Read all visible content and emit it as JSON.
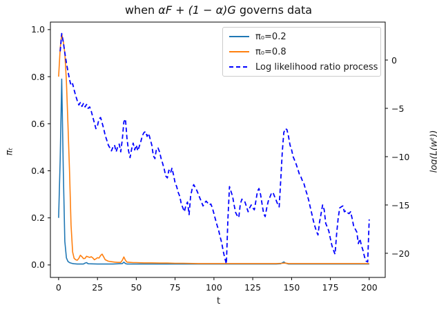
{
  "title": {
    "parts": [
      "when ",
      "αF + (1 − α)G",
      " governs data"
    ]
  },
  "xlabel": "t",
  "ylabel_left": "πₜ",
  "ylabel_right": "log(L(wᵗ))",
  "legend": {
    "items": [
      {
        "label": "π₀=0.2",
        "color": "#1f77b4",
        "dash": false
      },
      {
        "label": "π₀=0.8",
        "color": "#ff7f0e",
        "dash": false
      },
      {
        "label": "Log likelihood ratio process",
        "color": "#0000ff",
        "dash": true
      }
    ]
  },
  "chart_data": {
    "type": "line",
    "title": "when αF + (1 − α)G governs data",
    "xlabel": "t",
    "ylabel_left": "πₜ",
    "ylabel_right": "log(L(wᵗ))",
    "grid": false,
    "legend_position": "upper right",
    "xlim": [
      -5.3,
      210.3
    ],
    "yleft_lim": [
      -0.053,
      1.032
    ],
    "yright_lim": [
      -22.5,
      3.93
    ],
    "x_ticks": [
      0,
      25,
      50,
      75,
      100,
      125,
      150,
      175,
      200
    ],
    "yleft_ticks": [
      [
        0.0,
        "0.0"
      ],
      [
        0.2,
        "0.2"
      ],
      [
        0.4,
        "0.4"
      ],
      [
        0.6,
        "0.6"
      ],
      [
        0.8,
        "0.8"
      ],
      [
        1.0,
        "1.0"
      ]
    ],
    "yright_ticks": [
      [
        0,
        "0"
      ],
      [
        -5,
        "−5"
      ],
      [
        -10,
        "−10"
      ],
      [
        -15,
        "−15"
      ],
      [
        -20,
        "−20"
      ]
    ],
    "series": [
      {
        "name": "π₀=0.2",
        "axis": "left",
        "color": "#1f77b4",
        "style": "solid",
        "width": 1.6,
        "points": [
          [
            0,
            0.2
          ],
          [
            1,
            0.45
          ],
          [
            2,
            0.79
          ],
          [
            3,
            0.4
          ],
          [
            4,
            0.1
          ],
          [
            5,
            0.03
          ],
          [
            6,
            0.015
          ],
          [
            7,
            0.01
          ],
          [
            8,
            0.008
          ],
          [
            9,
            0.006
          ],
          [
            10,
            0.005
          ],
          [
            12,
            0.004
          ],
          [
            16,
            0.004
          ],
          [
            17,
            0.008
          ],
          [
            18,
            0.01
          ],
          [
            19,
            0.005
          ],
          [
            25,
            0.004
          ],
          [
            35,
            0.004
          ],
          [
            41,
            0.006
          ],
          [
            42,
            0.012
          ],
          [
            43,
            0.006
          ],
          [
            44,
            0.004
          ],
          [
            60,
            0.004
          ],
          [
            80,
            0.004
          ],
          [
            100,
            0.004
          ],
          [
            120,
            0.004
          ],
          [
            140,
            0.004
          ],
          [
            143,
            0.005
          ],
          [
            145,
            0.013
          ],
          [
            146,
            0.008
          ],
          [
            148,
            0.004
          ],
          [
            160,
            0.004
          ],
          [
            180,
            0.004
          ],
          [
            200,
            0.004
          ]
        ]
      },
      {
        "name": "π₀=0.8",
        "axis": "left",
        "color": "#ff7f0e",
        "style": "solid",
        "width": 1.6,
        "points": [
          [
            0,
            0.8
          ],
          [
            1,
            0.92
          ],
          [
            2,
            0.98
          ],
          [
            3,
            0.95
          ],
          [
            4,
            0.9
          ],
          [
            5,
            0.78
          ],
          [
            6,
            0.6
          ],
          [
            7,
            0.4
          ],
          [
            8,
            0.17
          ],
          [
            9,
            0.055
          ],
          [
            10,
            0.028
          ],
          [
            11,
            0.022
          ],
          [
            12,
            0.02
          ],
          [
            13,
            0.028
          ],
          [
            14,
            0.041
          ],
          [
            15,
            0.035
          ],
          [
            16,
            0.027
          ],
          [
            17,
            0.028
          ],
          [
            18,
            0.037
          ],
          [
            19,
            0.034
          ],
          [
            20,
            0.032
          ],
          [
            21,
            0.035
          ],
          [
            22,
            0.03
          ],
          [
            23,
            0.022
          ],
          [
            24,
            0.026
          ],
          [
            25,
            0.031
          ],
          [
            26,
            0.029
          ],
          [
            27,
            0.04
          ],
          [
            28,
            0.046
          ],
          [
            29,
            0.034
          ],
          [
            30,
            0.022
          ],
          [
            32,
            0.016
          ],
          [
            34,
            0.014
          ],
          [
            36,
            0.012
          ],
          [
            38,
            0.011
          ],
          [
            40,
            0.011
          ],
          [
            41,
            0.02
          ],
          [
            42,
            0.034
          ],
          [
            43,
            0.02
          ],
          [
            44,
            0.012
          ],
          [
            46,
            0.011
          ],
          [
            48,
            0.01
          ],
          [
            50,
            0.01
          ],
          [
            55,
            0.009
          ],
          [
            60,
            0.009
          ],
          [
            65,
            0.008
          ],
          [
            70,
            0.008
          ],
          [
            75,
            0.007
          ],
          [
            80,
            0.007
          ],
          [
            90,
            0.006
          ],
          [
            100,
            0.006
          ],
          [
            110,
            0.006
          ],
          [
            120,
            0.006
          ],
          [
            130,
            0.006
          ],
          [
            140,
            0.006
          ],
          [
            144,
            0.007
          ],
          [
            146,
            0.008
          ],
          [
            148,
            0.006
          ],
          [
            150,
            0.006
          ],
          [
            160,
            0.006
          ],
          [
            170,
            0.006
          ],
          [
            180,
            0.006
          ],
          [
            190,
            0.006
          ],
          [
            200,
            0.006
          ]
        ]
      },
      {
        "name": "Log likelihood ratio process",
        "axis": "right",
        "color": "#0000ff",
        "style": "dashed",
        "width": 1.8,
        "points": [
          [
            1,
            0.9
          ],
          [
            2,
            2.75
          ],
          [
            3,
            1.85
          ],
          [
            4,
            0.75
          ],
          [
            5,
            -0.3
          ],
          [
            6,
            -1.15
          ],
          [
            7,
            -2.0
          ],
          [
            8,
            -2.65
          ],
          [
            9,
            -2.45
          ],
          [
            10,
            -3.1
          ],
          [
            11,
            -3.7
          ],
          [
            12,
            -4.2
          ],
          [
            13,
            -4.65
          ],
          [
            14,
            -4.4
          ],
          [
            15,
            -4.8
          ],
          [
            16,
            -4.5
          ],
          [
            17,
            -4.85
          ],
          [
            18,
            -4.6
          ],
          [
            19,
            -5.0
          ],
          [
            20,
            -4.85
          ],
          [
            21,
            -5.3
          ],
          [
            22,
            -5.9
          ],
          [
            23,
            -6.5
          ],
          [
            24,
            -7.1
          ],
          [
            25,
            -6.8
          ],
          [
            26,
            -6.1
          ],
          [
            27,
            -5.95
          ],
          [
            28,
            -6.5
          ],
          [
            29,
            -7.1
          ],
          [
            30,
            -7.8
          ],
          [
            31,
            -8.3
          ],
          [
            32,
            -8.8
          ],
          [
            33,
            -9.1
          ],
          [
            34,
            -9.4
          ],
          [
            35,
            -9.0
          ],
          [
            36,
            -8.8
          ],
          [
            37,
            -9.5
          ],
          [
            38,
            -9.0
          ],
          [
            39,
            -8.7
          ],
          [
            40,
            -9.5
          ],
          [
            41,
            -8.2
          ],
          [
            42,
            -6.4
          ],
          [
            43,
            -6.1
          ],
          [
            44,
            -8.1
          ],
          [
            45,
            -9.4
          ],
          [
            46,
            -10.1
          ],
          [
            47,
            -9.2
          ],
          [
            48,
            -8.6
          ],
          [
            49,
            -9.3
          ],
          [
            50,
            -8.8
          ],
          [
            51,
            -9.4
          ],
          [
            52,
            -8.9
          ],
          [
            53,
            -8.4
          ],
          [
            54,
            -7.8
          ],
          [
            55,
            -7.5
          ],
          [
            56,
            -7.4
          ],
          [
            57,
            -7.9
          ],
          [
            58,
            -7.6
          ],
          [
            59,
            -8.2
          ],
          [
            60,
            -8.8
          ],
          [
            61,
            -9.9
          ],
          [
            62,
            -10.2
          ],
          [
            63,
            -9.2
          ],
          [
            64,
            -9.1
          ],
          [
            65,
            -9.5
          ],
          [
            66,
            -10.2
          ],
          [
            67,
            -10.7
          ],
          [
            68,
            -11.3
          ],
          [
            69,
            -12.0
          ],
          [
            70,
            -12.2
          ],
          [
            71,
            -11.4
          ],
          [
            72,
            -11.7
          ],
          [
            73,
            -11.2
          ],
          [
            74,
            -11.9
          ],
          [
            75,
            -12.7
          ],
          [
            76,
            -13.1
          ],
          [
            77,
            -13.7
          ],
          [
            78,
            -14.1
          ],
          [
            79,
            -14.9
          ],
          [
            80,
            -15.3
          ],
          [
            81,
            -15.7
          ],
          [
            82,
            -15.0
          ],
          [
            83,
            -14.7
          ],
          [
            84,
            -16.0
          ],
          [
            85,
            -14.1
          ],
          [
            86,
            -13.3
          ],
          [
            87,
            -12.9
          ],
          [
            88,
            -13.2
          ],
          [
            89,
            -13.5
          ],
          [
            90,
            -13.9
          ],
          [
            91,
            -14.3
          ],
          [
            92,
            -14.7
          ],
          [
            93,
            -15.1
          ],
          [
            94,
            -14.8
          ],
          [
            95,
            -14.6
          ],
          [
            96,
            -14.8
          ],
          [
            97,
            -15.0
          ],
          [
            98,
            -14.9
          ],
          [
            99,
            -15.3
          ],
          [
            100,
            -15.9
          ],
          [
            101,
            -16.5
          ],
          [
            102,
            -17.1
          ],
          [
            103,
            -17.6
          ],
          [
            104,
            -18.3
          ],
          [
            105,
            -18.9
          ],
          [
            106,
            -19.8
          ],
          [
            107,
            -20.5
          ],
          [
            108,
            -21.1
          ],
          [
            109,
            -16.5
          ],
          [
            110,
            -13.1
          ],
          [
            111,
            -13.6
          ],
          [
            112,
            -14.1
          ],
          [
            113,
            -15.0
          ],
          [
            114,
            -15.8
          ],
          [
            115,
            -16.1
          ],
          [
            116,
            -16.3
          ],
          [
            117,
            -14.9
          ],
          [
            118,
            -14.4
          ],
          [
            119,
            -14.6
          ],
          [
            120,
            -14.7
          ],
          [
            121,
            -15.2
          ],
          [
            122,
            -15.7
          ],
          [
            123,
            -15.3
          ],
          [
            124,
            -15.0
          ],
          [
            125,
            -15.3
          ],
          [
            126,
            -15.5
          ],
          [
            127,
            -14.6
          ],
          [
            128,
            -13.6
          ],
          [
            129,
            -13.3
          ],
          [
            130,
            -13.9
          ],
          [
            131,
            -14.9
          ],
          [
            132,
            -15.9
          ],
          [
            133,
            -16.2
          ],
          [
            134,
            -15.3
          ],
          [
            135,
            -14.6
          ],
          [
            136,
            -14.2
          ],
          [
            137,
            -13.8
          ],
          [
            138,
            -13.7
          ],
          [
            139,
            -14.1
          ],
          [
            140,
            -14.5
          ],
          [
            141,
            -14.9
          ],
          [
            142,
            -15.2
          ],
          [
            143,
            -12.5
          ],
          [
            144,
            -9.5
          ],
          [
            145,
            -7.5
          ],
          [
            146,
            -7.1
          ],
          [
            147,
            -7.2
          ],
          [
            148,
            -7.9
          ],
          [
            149,
            -8.8
          ],
          [
            150,
            -9.3
          ],
          [
            151,
            -10.0
          ],
          [
            152,
            -10.4
          ],
          [
            153,
            -10.8
          ],
          [
            154,
            -11.3
          ],
          [
            155,
            -11.8
          ],
          [
            156,
            -12.1
          ],
          [
            157,
            -12.5
          ],
          [
            158,
            -12.8
          ],
          [
            159,
            -13.4
          ],
          [
            160,
            -13.9
          ],
          [
            161,
            -14.5
          ],
          [
            162,
            -15.2
          ],
          [
            163,
            -15.9
          ],
          [
            164,
            -16.6
          ],
          [
            165,
            -17.2
          ],
          [
            166,
            -17.7
          ],
          [
            167,
            -18.1
          ],
          [
            168,
            -16.8
          ],
          [
            169,
            -15.9
          ],
          [
            170,
            -15.0
          ],
          [
            171,
            -15.5
          ],
          [
            172,
            -16.9
          ],
          [
            173,
            -17.3
          ],
          [
            174,
            -17.7
          ],
          [
            175,
            -18.5
          ],
          [
            176,
            -19.2
          ],
          [
            177,
            -19.7
          ],
          [
            178,
            -20.1
          ],
          [
            179,
            -18.0
          ],
          [
            180,
            -16.4
          ],
          [
            181,
            -15.3
          ],
          [
            182,
            -15.2
          ],
          [
            183,
            -15.1
          ],
          [
            184,
            -15.7
          ],
          [
            185,
            -15.6
          ],
          [
            186,
            -15.8
          ],
          [
            187,
            -15.9
          ],
          [
            188,
            -15.7
          ],
          [
            189,
            -16.4
          ],
          [
            190,
            -17.2
          ],
          [
            191,
            -17.5
          ],
          [
            192,
            -17.8
          ],
          [
            193,
            -19.0
          ],
          [
            194,
            -18.5
          ],
          [
            195,
            -19.2
          ],
          [
            196,
            -19.7
          ],
          [
            197,
            -20.4
          ],
          [
            198,
            -20.8
          ],
          [
            199,
            -20.9
          ],
          [
            200,
            -16.5
          ]
        ]
      }
    ]
  }
}
